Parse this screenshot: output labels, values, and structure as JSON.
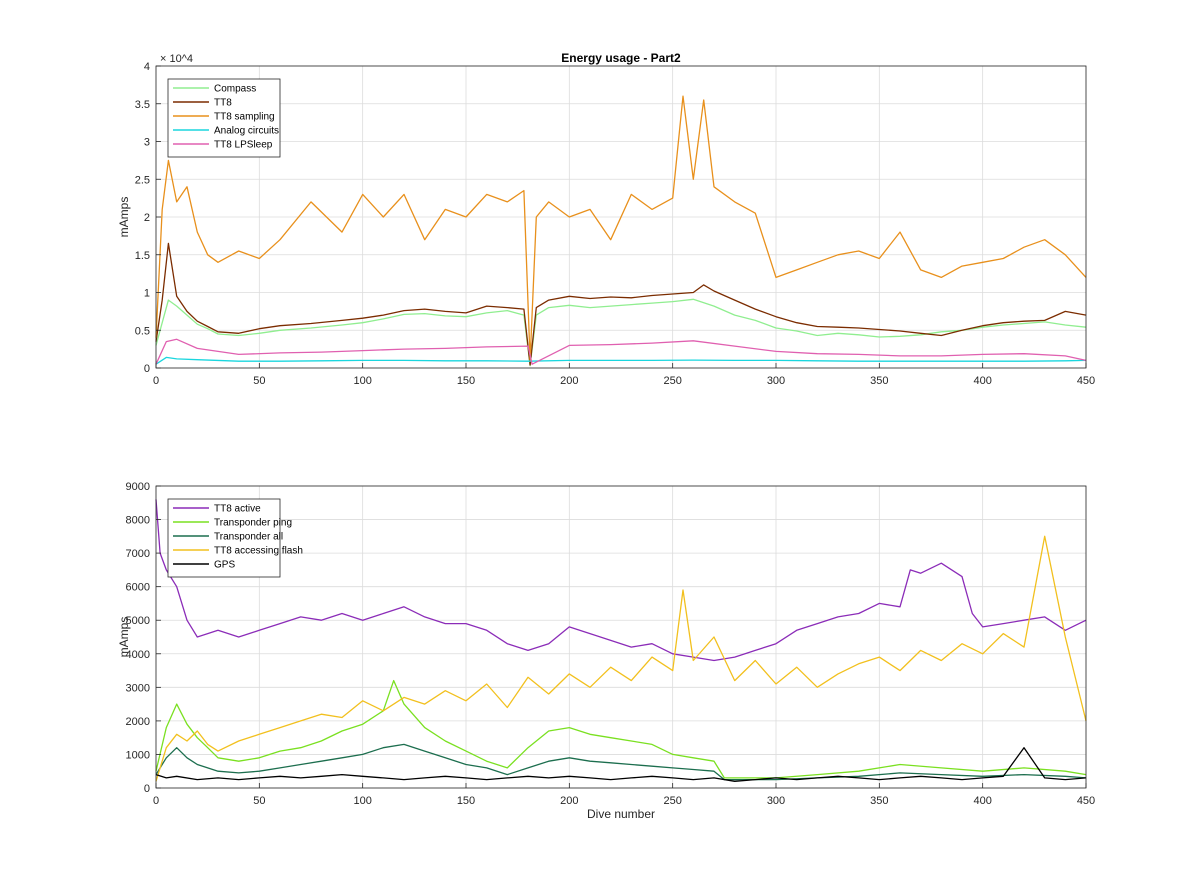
{
  "figure": {
    "background": "#ffffff"
  },
  "chart_data": [
    {
      "type": "line",
      "title": "Energy usage - Part2",
      "xlabel": "",
      "ylabel": "mAmps",
      "y_exponent_label": "× 10^4",
      "xlim": [
        0,
        450
      ],
      "ylim": [
        0,
        40000
      ],
      "xticks": [
        0,
        50,
        100,
        150,
        200,
        250,
        300,
        350,
        400,
        450
      ],
      "yticks": [
        0,
        5000,
        10000,
        15000,
        20000,
        25000,
        30000,
        35000,
        40000
      ],
      "ytick_labels": [
        "0",
        "0.5",
        "1",
        "1.5",
        "2",
        "2.5",
        "3",
        "3.5",
        "4"
      ],
      "grid": true,
      "legend_position": "top-left",
      "series": [
        {
          "name": "Compass",
          "color": "#90ee90",
          "x": [
            0,
            3,
            6,
            10,
            15,
            20,
            25,
            30,
            40,
            50,
            60,
            75,
            90,
            100,
            110,
            120,
            130,
            140,
            150,
            160,
            170,
            178,
            181,
            184,
            190,
            200,
            210,
            220,
            230,
            240,
            250,
            260,
            270,
            280,
            290,
            300,
            310,
            320,
            330,
            340,
            350,
            360,
            370,
            380,
            390,
            400,
            410,
            420,
            430,
            440,
            450
          ],
          "values": [
            3000,
            6000,
            9000,
            8200,
            7000,
            5800,
            5200,
            4500,
            4300,
            4600,
            5000,
            5300,
            5700,
            6000,
            6500,
            7100,
            7200,
            6900,
            6800,
            7300,
            7600,
            7000,
            300,
            7000,
            8000,
            8300,
            8000,
            8200,
            8400,
            8600,
            8800,
            9100,
            8200,
            7000,
            6300,
            5300,
            4900,
            4300,
            4600,
            4400,
            4100,
            4200,
            4400,
            4800,
            5000,
            5400,
            5700,
            5900,
            6100,
            5700,
            5400
          ]
        },
        {
          "name": "TT8",
          "color": "#7b2c00",
          "x": [
            0,
            3,
            6,
            10,
            15,
            20,
            25,
            30,
            40,
            50,
            60,
            75,
            90,
            100,
            110,
            120,
            130,
            140,
            150,
            160,
            170,
            178,
            181,
            184,
            190,
            200,
            210,
            220,
            230,
            240,
            250,
            260,
            265,
            270,
            280,
            290,
            300,
            310,
            320,
            330,
            340,
            350,
            360,
            370,
            380,
            390,
            400,
            410,
            420,
            430,
            440,
            450
          ],
          "values": [
            3500,
            9000,
            16500,
            9500,
            7500,
            6200,
            5500,
            4800,
            4600,
            5200,
            5600,
            5900,
            6300,
            6600,
            7000,
            7600,
            7800,
            7500,
            7300,
            8200,
            8000,
            7800,
            400,
            8000,
            9000,
            9500,
            9200,
            9400,
            9300,
            9600,
            9800,
            10000,
            11000,
            10200,
            9000,
            7800,
            6800,
            6000,
            5500,
            5400,
            5300,
            5100,
            4900,
            4600,
            4300,
            5000,
            5600,
            6000,
            6200,
            6300,
            7500,
            7000
          ]
        },
        {
          "name": "TT8 sampling",
          "color": "#e8901c",
          "x": [
            0,
            3,
            6,
            10,
            15,
            20,
            25,
            30,
            40,
            50,
            60,
            75,
            90,
            100,
            110,
            120,
            130,
            140,
            150,
            160,
            170,
            178,
            181,
            184,
            190,
            200,
            210,
            220,
            230,
            240,
            250,
            255,
            260,
            265,
            270,
            280,
            290,
            300,
            310,
            320,
            330,
            340,
            350,
            360,
            370,
            380,
            390,
            400,
            410,
            420,
            430,
            440,
            450
          ],
          "values": [
            4000,
            21000,
            27500,
            22000,
            24000,
            18000,
            15000,
            14000,
            15500,
            14500,
            17000,
            22000,
            18000,
            23000,
            20000,
            23000,
            17000,
            21000,
            20000,
            23000,
            22000,
            23500,
            1000,
            20000,
            22000,
            20000,
            21000,
            17000,
            23000,
            21000,
            22500,
            36000,
            25000,
            35500,
            24000,
            22000,
            20500,
            12000,
            13000,
            14000,
            15000,
            15500,
            14500,
            18000,
            13000,
            12000,
            13500,
            14000,
            14500,
            16000,
            17000,
            15000,
            12000
          ]
        },
        {
          "name": "Analog circuits",
          "color": "#1ad6de",
          "x": [
            0,
            5,
            10,
            20,
            40,
            60,
            80,
            100,
            120,
            140,
            160,
            180,
            200,
            220,
            240,
            260,
            280,
            300,
            320,
            340,
            360,
            380,
            400,
            420,
            440,
            450
          ],
          "values": [
            500,
            1400,
            1200,
            1100,
            900,
            900,
            950,
            1000,
            1000,
            950,
            950,
            900,
            1000,
            1000,
            1000,
            1050,
            1000,
            1000,
            950,
            900,
            900,
            900,
            900,
            900,
            950,
            1000
          ]
        },
        {
          "name": "TT8 LPSleep",
          "color": "#e060b0",
          "x": [
            0,
            5,
            10,
            20,
            40,
            60,
            80,
            100,
            120,
            140,
            160,
            180,
            182,
            200,
            220,
            240,
            260,
            280,
            300,
            320,
            340,
            360,
            380,
            400,
            420,
            440,
            450
          ],
          "values": [
            500,
            3500,
            3800,
            2600,
            1800,
            2000,
            2100,
            2300,
            2500,
            2600,
            2800,
            2900,
            500,
            3000,
            3100,
            3300,
            3600,
            2900,
            2200,
            1900,
            1800,
            1600,
            1600,
            1800,
            1900,
            1600,
            1000
          ]
        }
      ]
    },
    {
      "type": "line",
      "title": "",
      "xlabel": "Dive number",
      "ylabel": "mAmps",
      "xlim": [
        0,
        450
      ],
      "ylim": [
        0,
        9000
      ],
      "xticks": [
        0,
        50,
        100,
        150,
        200,
        250,
        300,
        350,
        400,
        450
      ],
      "yticks": [
        0,
        1000,
        2000,
        3000,
        4000,
        5000,
        6000,
        7000,
        8000,
        9000
      ],
      "grid": true,
      "legend_position": "top-left",
      "series": [
        {
          "name": "TT8 active",
          "color": "#8b2cb8",
          "x": [
            0,
            2,
            5,
            10,
            15,
            20,
            25,
            30,
            40,
            50,
            60,
            70,
            80,
            90,
            100,
            110,
            120,
            130,
            140,
            150,
            160,
            170,
            180,
            190,
            200,
            210,
            220,
            230,
            240,
            250,
            260,
            270,
            280,
            290,
            300,
            310,
            320,
            330,
            340,
            350,
            360,
            365,
            370,
            380,
            390,
            395,
            400,
            410,
            420,
            430,
            440,
            450
          ],
          "values": [
            8600,
            7000,
            6500,
            6000,
            5000,
            4500,
            4600,
            4700,
            4500,
            4700,
            4900,
            5100,
            5000,
            5200,
            5000,
            5200,
            5400,
            5100,
            4900,
            4900,
            4700,
            4300,
            4100,
            4300,
            4800,
            4600,
            4400,
            4200,
            4300,
            4000,
            3900,
            3800,
            3900,
            4100,
            4300,
            4700,
            4900,
            5100,
            5200,
            5500,
            5400,
            6500,
            6400,
            6700,
            6300,
            5200,
            4800,
            4900,
            5000,
            5100,
            4700,
            5000
          ]
        },
        {
          "name": "Transponder ping",
          "color": "#7ae020",
          "x": [
            0,
            5,
            10,
            15,
            20,
            25,
            30,
            40,
            50,
            60,
            70,
            80,
            90,
            100,
            110,
            115,
            120,
            130,
            140,
            150,
            160,
            170,
            180,
            190,
            200,
            210,
            220,
            230,
            240,
            250,
            260,
            270,
            275,
            280,
            290,
            300,
            320,
            340,
            360,
            380,
            400,
            420,
            440,
            450
          ],
          "values": [
            500,
            1800,
            2500,
            1900,
            1500,
            1200,
            900,
            800,
            900,
            1100,
            1200,
            1400,
            1700,
            1900,
            2300,
            3200,
            2500,
            1800,
            1400,
            1100,
            800,
            600,
            1200,
            1700,
            1800,
            1600,
            1500,
            1400,
            1300,
            1000,
            900,
            800,
            300,
            300,
            300,
            300,
            400,
            500,
            700,
            600,
            500,
            600,
            500,
            400
          ]
        },
        {
          "name": "Transponder all",
          "color": "#1c6e4e",
          "x": [
            0,
            5,
            10,
            15,
            20,
            25,
            30,
            40,
            50,
            60,
            70,
            80,
            90,
            100,
            110,
            120,
            130,
            140,
            150,
            160,
            170,
            180,
            190,
            200,
            210,
            220,
            230,
            240,
            250,
            260,
            270,
            275,
            280,
            300,
            320,
            340,
            360,
            380,
            400,
            420,
            440,
            450
          ],
          "values": [
            400,
            900,
            1200,
            900,
            700,
            600,
            500,
            450,
            500,
            600,
            700,
            800,
            900,
            1000,
            1200,
            1300,
            1100,
            900,
            700,
            600,
            400,
            600,
            800,
            900,
            800,
            750,
            700,
            650,
            600,
            550,
            500,
            250,
            250,
            250,
            300,
            350,
            450,
            400,
            350,
            400,
            350,
            300
          ]
        },
        {
          "name": "TT8 accessing flash",
          "color": "#f2c01e",
          "x": [
            0,
            5,
            10,
            15,
            20,
            25,
            30,
            40,
            50,
            60,
            70,
            80,
            90,
            100,
            110,
            120,
            130,
            140,
            150,
            160,
            170,
            180,
            190,
            200,
            210,
            220,
            230,
            240,
            250,
            255,
            260,
            270,
            280,
            290,
            300,
            310,
            320,
            330,
            340,
            350,
            360,
            370,
            380,
            390,
            400,
            410,
            420,
            430,
            440,
            450
          ],
          "values": [
            200,
            1200,
            1600,
            1400,
            1700,
            1300,
            1100,
            1400,
            1600,
            1800,
            2000,
            2200,
            2100,
            2600,
            2300,
            2700,
            2500,
            2900,
            2600,
            3100,
            2400,
            3300,
            2800,
            3400,
            3000,
            3600,
            3200,
            3900,
            3500,
            5900,
            3800,
            4500,
            3200,
            3800,
            3100,
            3600,
            3000,
            3400,
            3700,
            3900,
            3500,
            4100,
            3800,
            4300,
            4000,
            4600,
            4200,
            7500,
            4500,
            2000
          ]
        },
        {
          "name": "GPS",
          "color": "#000000",
          "x": [
            0,
            5,
            10,
            20,
            30,
            40,
            50,
            60,
            70,
            80,
            90,
            100,
            110,
            120,
            130,
            140,
            150,
            160,
            170,
            180,
            190,
            200,
            210,
            220,
            230,
            240,
            250,
            260,
            270,
            280,
            290,
            300,
            310,
            320,
            330,
            340,
            350,
            360,
            370,
            380,
            390,
            400,
            410,
            420,
            430,
            440,
            450
          ],
          "values": [
            400,
            300,
            350,
            250,
            300,
            250,
            300,
            350,
            300,
            350,
            400,
            350,
            300,
            250,
            300,
            350,
            300,
            250,
            300,
            350,
            300,
            350,
            300,
            250,
            300,
            350,
            300,
            250,
            300,
            200,
            250,
            300,
            250,
            300,
            350,
            300,
            250,
            300,
            350,
            300,
            250,
            300,
            350,
            1200,
            300,
            250,
            300
          ]
        }
      ]
    }
  ]
}
